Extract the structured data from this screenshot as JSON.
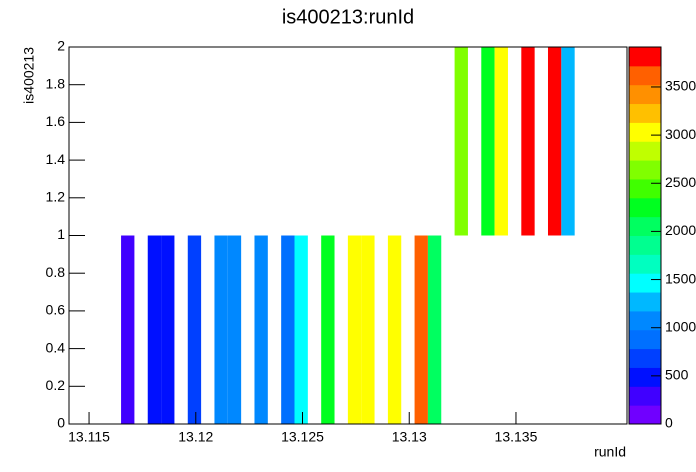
{
  "chart_data": {
    "type": "heatmap",
    "title": "is400213:runId",
    "x_label": "runId",
    "y_label": "is400213",
    "x": [
      13.1165,
      13.11775,
      13.118375,
      13.119625,
      13.120875,
      13.1215,
      13.12275,
      13.124,
      13.124625,
      13.125875,
      13.127125,
      13.12775,
      13.129,
      13.13025,
      13.130875,
      13.132125,
      13.133375,
      13.134,
      13.13525,
      13.1365,
      13.137125
    ],
    "y": [
      0,
      0,
      0,
      0,
      0,
      0,
      0,
      0,
      0,
      0,
      0,
      0,
      0,
      0,
      0,
      1,
      1,
      1,
      1,
      1,
      1
    ],
    "values": [
      300,
      500,
      500,
      700,
      1100,
      1100,
      1100,
      950,
      1500,
      2250,
      3050,
      3050,
      3050,
      3650,
      2050,
      2650,
      2250,
      3050,
      3800,
      3800,
      1300
    ],
    "bin_size": [
      0.000625,
      1
    ],
    "xlim": [
      13.114,
      13.14
    ],
    "xticks": [
      13.115,
      13.12,
      13.125,
      13.13,
      13.135
    ],
    "ylim": [
      0,
      2
    ],
    "yticks": [
      0,
      0.2,
      0.4,
      0.6,
      0.8,
      1,
      1.2,
      1.4,
      1.6,
      1.8,
      2
    ],
    "zlim": [
      0,
      3915
    ],
    "zticks": [
      0,
      500,
      1000,
      1500,
      2000,
      2500,
      3000,
      3500
    ],
    "palette": [
      "#7000ff",
      "#4000ff",
      "#0010ff",
      "#0040ff",
      "#0070ff",
      "#0088ff",
      "#00b8ff",
      "#00ffff",
      "#00ffc0",
      "#00ff90",
      "#00ff60",
      "#00ff20",
      "#40ff00",
      "#80ff00",
      "#c0ff00",
      "#ffff00",
      "#ffc000",
      "#ff9000",
      "#ff6000",
      "#ff0000"
    ]
  }
}
